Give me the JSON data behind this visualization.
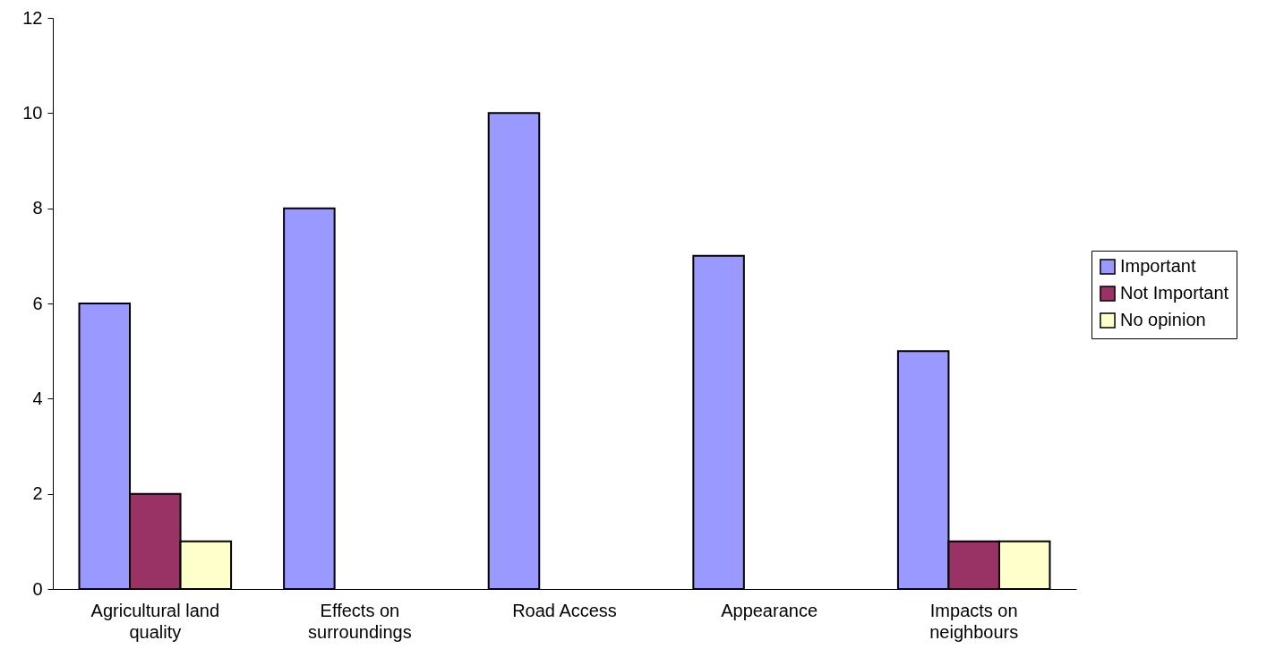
{
  "chart_data": {
    "type": "bar",
    "categories": [
      "Agricultural land quality",
      "Effects on surroundings",
      "Road Access",
      "Appearance",
      "Impacts on neighbours"
    ],
    "series": [
      {
        "name": "Important",
        "color": "#9999ff",
        "values": [
          6,
          8,
          10,
          7,
          5
        ]
      },
      {
        "name": "Not Important",
        "color": "#993366",
        "values": [
          2,
          null,
          null,
          null,
          1
        ]
      },
      {
        "name": "No opinion",
        "color": "#ffffcc",
        "values": [
          1,
          null,
          null,
          null,
          1
        ]
      }
    ],
    "ylim": [
      0,
      12
    ],
    "yticks": [
      0,
      2,
      4,
      6,
      8,
      10,
      12
    ],
    "grid": false,
    "legend": "right"
  }
}
